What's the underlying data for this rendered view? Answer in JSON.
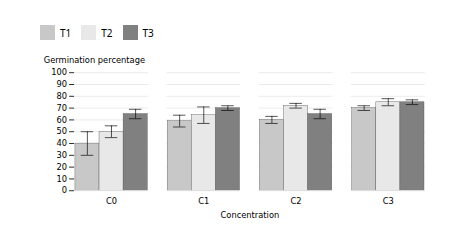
{
  "chart_data": {
    "type": "bar",
    "xlabel": "Concentration",
    "ylabel": "Germination percentage",
    "categories": [
      "C0",
      "C1",
      "C2",
      "C3"
    ],
    "series": [
      {
        "name": "T1",
        "color": "#c8c8c8",
        "values": [
          40,
          59,
          60,
          70
        ],
        "errors": [
          10,
          5,
          3,
          2
        ]
      },
      {
        "name": "T2",
        "color": "#e8e8e8",
        "values": [
          50,
          64,
          72,
          75
        ],
        "errors": [
          5,
          7,
          2,
          3
        ]
      },
      {
        "name": "T3",
        "color": "#808080",
        "values": [
          65,
          70,
          65,
          75
        ],
        "errors": [
          4,
          2,
          4,
          2
        ]
      }
    ],
    "ylim": [
      0,
      100
    ],
    "yticks": [
      0,
      10,
      20,
      30,
      40,
      50,
      60,
      70,
      80,
      90,
      100
    ],
    "grid": true,
    "legend": "right"
  }
}
